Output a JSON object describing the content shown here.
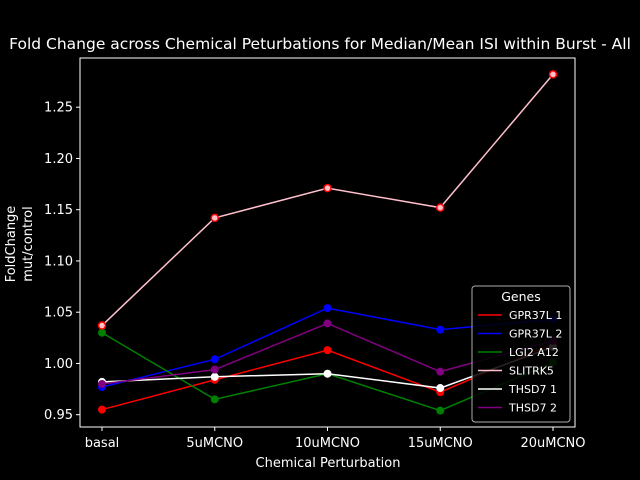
{
  "chart_data": {
    "type": "line",
    "title": "Fold Change across Chemical Peturbations for Median/Mean ISI within Burst - All",
    "xlabel": "Chemical Perturbation",
    "ylabel_lines": [
      "FoldChange",
      "mut/control"
    ],
    "categories": [
      "basal",
      "5uMCNO",
      "10uMCNO",
      "15uMCNO",
      "20uMCNO"
    ],
    "ylim": [
      0.938,
      1.298
    ],
    "yticks": [
      0.95,
      1.0,
      1.05,
      1.1,
      1.15,
      1.2,
      1.25
    ],
    "ytick_labels": [
      "0.95",
      "1.00",
      "1.05",
      "1.10",
      "1.15",
      "1.20",
      "1.25"
    ],
    "grid": false,
    "background": "#000000",
    "foreground": "#ffffff",
    "legend": {
      "title": "Genes",
      "placement": "lower-right"
    },
    "series": [
      {
        "name": "GPR37L 1",
        "color": "#ff0000",
        "values": [
          0.955,
          0.984,
          1.013,
          0.972,
          1.019
        ]
      },
      {
        "name": "GPR37L 2",
        "color": "#0000ff",
        "values": [
          0.977,
          1.004,
          1.054,
          1.033,
          1.043
        ]
      },
      {
        "name": "LGI2 A12",
        "color": "#008000",
        "values": [
          1.03,
          0.965,
          0.99,
          0.954,
          1.001
        ]
      },
      {
        "name": "SLITRK5",
        "color": "#ffc0cb",
        "values": [
          1.037,
          1.142,
          1.171,
          1.152,
          1.282
        ]
      },
      {
        "name": "THSD7 1",
        "color": "#ffffff",
        "values": [
          0.982,
          0.987,
          0.99,
          0.976,
          1.016
        ]
      },
      {
        "name": "THSD7 2",
        "color": "#800080",
        "values": [
          0.98,
          0.994,
          1.039,
          0.992,
          1.022
        ]
      }
    ],
    "marker_edge_highlight": {
      "series": "SLITRK5",
      "edge_color": "#ff0000"
    }
  }
}
